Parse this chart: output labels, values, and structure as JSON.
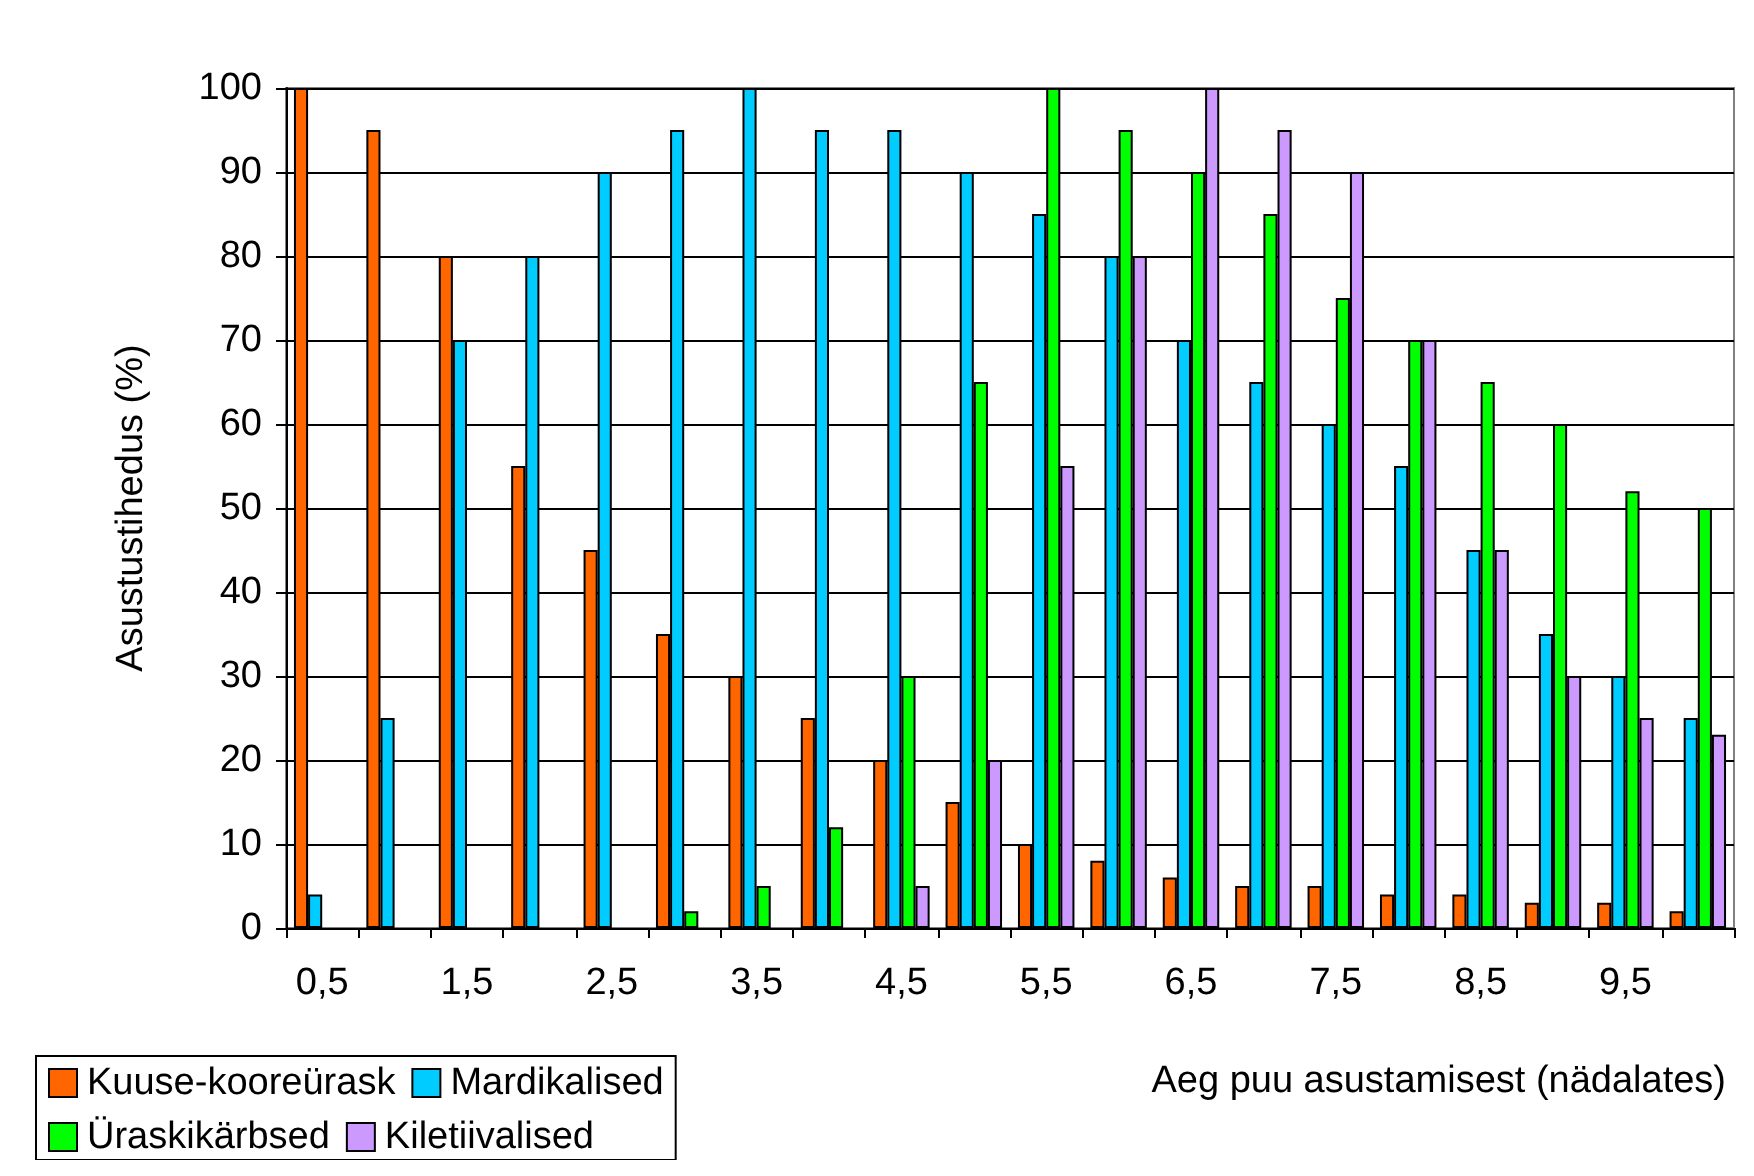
{
  "chart_data": {
    "type": "bar",
    "xlabel": "Aeg puu asustamisest (nädalates)",
    "ylabel": "Asustustihedus (%)",
    "categories": [
      "0,5",
      null,
      "1,5",
      null,
      "2,5",
      null,
      "3,5",
      null,
      "4,5",
      null,
      "5,5",
      null,
      "6,5",
      null,
      "7,5",
      null,
      "8,5",
      null,
      "9,5",
      null
    ],
    "series": [
      {
        "name": "Kuuse-kooreürask",
        "color": "#ff6600",
        "values": [
          100,
          95,
          80,
          55,
          45,
          35,
          30,
          25,
          20,
          15,
          10,
          8,
          6,
          5,
          5,
          4,
          4,
          3,
          3,
          2
        ]
      },
      {
        "name": "Mardikalised",
        "color": "#00ccff",
        "values": [
          4,
          25,
          70,
          80,
          90,
          95,
          100,
          95,
          95,
          90,
          85,
          80,
          70,
          65,
          60,
          55,
          45,
          35,
          30,
          25
        ]
      },
      {
        "name": "Üraskikärbsed",
        "color": "#00ff00",
        "values": [
          null,
          null,
          null,
          null,
          null,
          2,
          5,
          12,
          30,
          65,
          100,
          95,
          90,
          85,
          75,
          70,
          65,
          60,
          52,
          50
        ]
      },
      {
        "name": "Kiletiivalised",
        "color": "#cc99ff",
        "values": [
          null,
          null,
          null,
          null,
          null,
          null,
          null,
          null,
          5,
          20,
          55,
          80,
          100,
          95,
          90,
          70,
          45,
          30,
          25,
          23
        ]
      }
    ],
    "ylim": [
      0,
      100
    ],
    "yticks": [
      0,
      10,
      20,
      30,
      40,
      50,
      60,
      70,
      80,
      90,
      100
    ],
    "grid": "y",
    "legend": "bottom left"
  }
}
